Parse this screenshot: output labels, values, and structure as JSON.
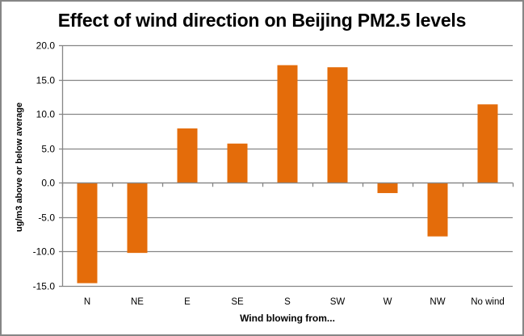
{
  "chart_data": {
    "type": "bar",
    "title": "Effect of wind direction on Beijing PM2.5 levels",
    "xlabel": "Wind blowing from...",
    "ylabel": "ug/m3 above or below average",
    "categories": [
      "N",
      "NE",
      "E",
      "SE",
      "S",
      "SW",
      "W",
      "NW",
      "No wind"
    ],
    "values": [
      -14.6,
      -10.2,
      7.9,
      5.7,
      17.1,
      16.8,
      -1.5,
      -7.8,
      11.4
    ],
    "ylim": [
      -15,
      20
    ],
    "yticks": [
      20,
      15,
      10,
      5,
      0,
      -5,
      -10,
      -15
    ],
    "ytick_labels": [
      "20.0",
      "15.0",
      "10.0",
      "5.0",
      "0.0",
      "-5.0",
      "-10.0",
      "-15.0"
    ],
    "grid": true,
    "legend": null,
    "bar_color": "#E46C0A",
    "grid_color": "#868686"
  }
}
